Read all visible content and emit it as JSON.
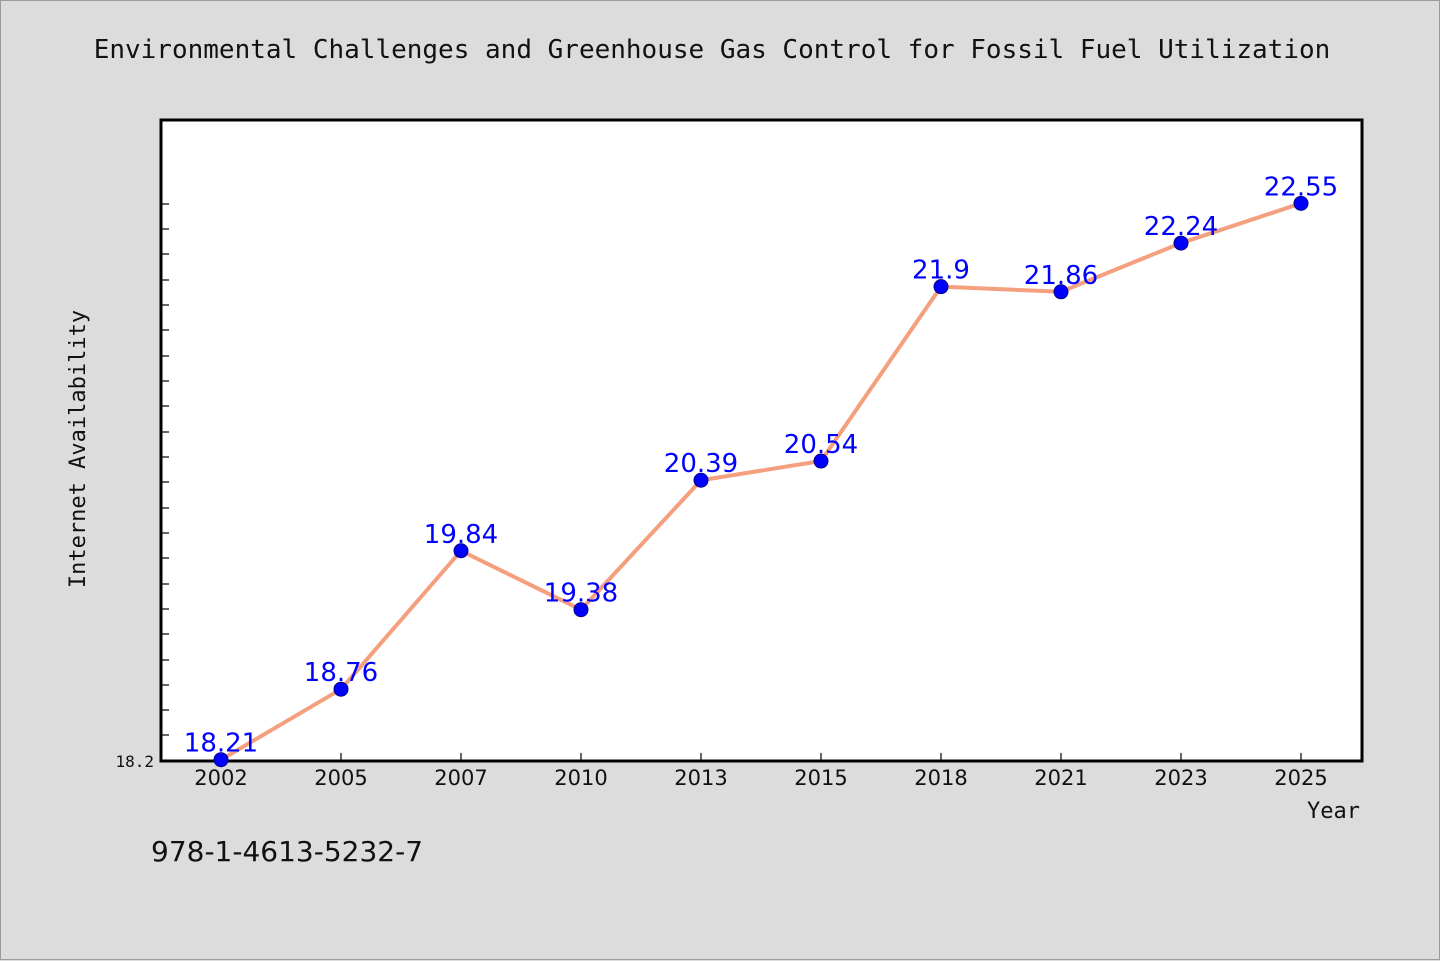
{
  "chart_data": {
    "type": "line",
    "title": "Environmental Challenges and Greenhouse Gas Control for Fossil Fuel Utilization",
    "xlabel": "Year",
    "ylabel": "Internet Availability",
    "categories": [
      "2002",
      "2005",
      "2007",
      "2010",
      "2013",
      "2015",
      "2018",
      "2021",
      "2023",
      "2025"
    ],
    "series": [
      {
        "values": [
          18.21,
          18.76,
          19.84,
          19.38,
          20.39,
          20.54,
          21.9,
          21.86,
          22.24,
          22.55
        ]
      }
    ],
    "data_labels": [
      "18.21",
      "18.76",
      "19.84",
      "19.38",
      "20.39",
      "20.54",
      "21.9",
      "21.86",
      "22.24",
      "22.55"
    ],
    "y_tick_labels": [
      "18.2"
    ],
    "ylim": [
      18.2,
      23.2
    ],
    "grid": false,
    "colors": {
      "line": "#f4a07e",
      "marker": "#0000ff",
      "label": "#0000ff",
      "background": "#dcdcdc",
      "plot_bg": "#ffffff"
    }
  },
  "footer": {
    "isbn": "978-1-4613-5232-7"
  }
}
